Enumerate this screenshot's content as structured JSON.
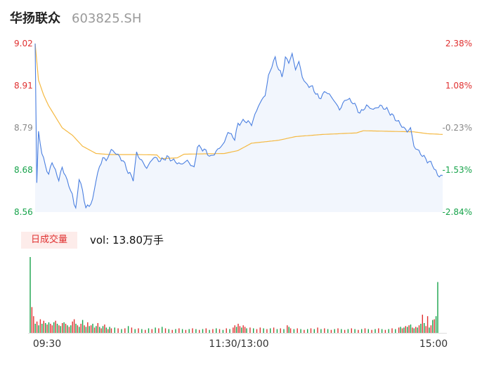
{
  "header": {
    "name": "华扬联众",
    "code": "603825.SH"
  },
  "colors": {
    "up": "#e03030",
    "down": "#16a34a",
    "flat": "#888888",
    "price_line": "#4a7fe0",
    "avg_line": "#f5b942",
    "fill": "#f2f6fd"
  },
  "volume": {
    "tag": "日成交量",
    "text": "vol: 13.80万手"
  },
  "chart_data": {
    "type": "line",
    "title": "",
    "price_ticks": [
      "9.02",
      "8.91",
      "8.79",
      "8.68",
      "8.56"
    ],
    "pct_ticks": [
      "2.38%",
      "1.08%",
      "-0.23%",
      "-1.53%",
      "-2.84%"
    ],
    "ylim": [
      8.56,
      9.02
    ],
    "prev_close": 8.81,
    "x_ticks": [
      "09:30",
      "11:30/13:00",
      "15:00"
    ],
    "price_keypoints": [
      [
        0,
        9.02
      ],
      [
        1,
        8.64
      ],
      [
        2,
        8.78
      ],
      [
        4,
        8.72
      ],
      [
        6,
        8.69
      ],
      [
        8,
        8.66
      ],
      [
        10,
        8.7
      ],
      [
        12,
        8.67
      ],
      [
        14,
        8.65
      ],
      [
        16,
        8.68
      ],
      [
        18,
        8.66
      ],
      [
        20,
        8.63
      ],
      [
        22,
        8.61
      ],
      [
        23,
        8.58
      ],
      [
        24,
        8.57
      ],
      [
        26,
        8.65
      ],
      [
        28,
        8.62
      ],
      [
        30,
        8.57
      ],
      [
        32,
        8.58
      ],
      [
        34,
        8.59
      ],
      [
        36,
        8.65
      ],
      [
        38,
        8.68
      ],
      [
        40,
        8.71
      ],
      [
        42,
        8.7
      ],
      [
        45,
        8.73
      ],
      [
        48,
        8.72
      ],
      [
        52,
        8.7
      ],
      [
        55,
        8.67
      ],
      [
        58,
        8.65
      ],
      [
        60,
        8.72
      ],
      [
        63,
        8.7
      ],
      [
        66,
        8.68
      ],
      [
        70,
        8.71
      ],
      [
        74,
        8.7
      ],
      [
        78,
        8.71
      ],
      [
        82,
        8.7
      ],
      [
        86,
        8.69
      ],
      [
        90,
        8.7
      ],
      [
        94,
        8.68
      ],
      [
        96,
        8.74
      ],
      [
        100,
        8.73
      ],
      [
        104,
        8.71
      ],
      [
        108,
        8.73
      ],
      [
        112,
        8.75
      ],
      [
        114,
        8.78
      ],
      [
        118,
        8.76
      ],
      [
        120,
        8.8
      ],
      [
        124,
        8.81
      ],
      [
        128,
        8.8
      ],
      [
        132,
        8.85
      ],
      [
        136,
        8.88
      ],
      [
        138,
        8.93
      ],
      [
        140,
        8.96
      ],
      [
        142,
        8.98
      ],
      [
        144,
        8.95
      ],
      [
        146,
        8.93
      ],
      [
        148,
        8.98
      ],
      [
        150,
        8.97
      ],
      [
        152,
        8.99
      ],
      [
        154,
        8.95
      ],
      [
        156,
        8.97
      ],
      [
        158,
        8.93
      ],
      [
        160,
        8.91
      ],
      [
        164,
        8.9
      ],
      [
        168,
        8.87
      ],
      [
        172,
        8.89
      ],
      [
        176,
        8.87
      ],
      [
        180,
        8.84
      ],
      [
        184,
        8.87
      ],
      [
        188,
        8.86
      ],
      [
        192,
        8.83
      ],
      [
        196,
        8.85
      ],
      [
        200,
        8.84
      ],
      [
        204,
        8.85
      ],
      [
        208,
        8.84
      ],
      [
        212,
        8.82
      ],
      [
        216,
        8.8
      ],
      [
        220,
        8.78
      ],
      [
        222,
        8.79
      ],
      [
        224,
        8.74
      ],
      [
        228,
        8.72
      ],
      [
        230,
        8.71
      ],
      [
        232,
        8.7
      ],
      [
        235,
        8.69
      ],
      [
        238,
        8.66
      ],
      [
        241,
        8.66
      ]
    ],
    "avg_keypoints": [
      [
        0,
        9.02
      ],
      [
        2,
        8.92
      ],
      [
        5,
        8.88
      ],
      [
        8,
        8.85
      ],
      [
        12,
        8.82
      ],
      [
        16,
        8.79
      ],
      [
        22,
        8.77
      ],
      [
        28,
        8.74
      ],
      [
        36,
        8.72
      ],
      [
        44,
        8.717
      ],
      [
        60,
        8.717
      ],
      [
        72,
        8.716
      ],
      [
        74,
        8.706
      ],
      [
        84,
        8.708
      ],
      [
        88,
        8.718
      ],
      [
        112,
        8.72
      ],
      [
        120,
        8.728
      ],
      [
        124,
        8.738
      ],
      [
        128,
        8.748
      ],
      [
        144,
        8.756
      ],
      [
        154,
        8.766
      ],
      [
        170,
        8.772
      ],
      [
        190,
        8.776
      ],
      [
        194,
        8.782
      ],
      [
        224,
        8.779
      ],
      [
        232,
        8.774
      ],
      [
        241,
        8.772
      ]
    ],
    "volume_bars": [
      [
        0,
        1.0,
        "d"
      ],
      [
        1,
        0.34,
        "u"
      ],
      [
        2,
        0.22,
        "u"
      ],
      [
        3,
        0.12,
        "d"
      ],
      [
        4,
        0.15,
        "u"
      ],
      [
        5,
        0.1,
        "d"
      ],
      [
        6,
        0.18,
        "u"
      ],
      [
        7,
        0.12,
        "d"
      ],
      [
        8,
        0.16,
        "u"
      ],
      [
        9,
        0.13,
        "d"
      ],
      [
        10,
        0.11,
        "u"
      ],
      [
        11,
        0.14,
        "d"
      ],
      [
        12,
        0.12,
        "u"
      ],
      [
        13,
        0.1,
        "u"
      ],
      [
        14,
        0.14,
        "d"
      ],
      [
        15,
        0.16,
        "u"
      ],
      [
        16,
        0.12,
        "d"
      ],
      [
        17,
        0.1,
        "u"
      ],
      [
        18,
        0.09,
        "d"
      ],
      [
        19,
        0.13,
        "u"
      ],
      [
        20,
        0.14,
        "d"
      ],
      [
        21,
        0.12,
        "u"
      ],
      [
        22,
        0.1,
        "d"
      ],
      [
        23,
        0.08,
        "u"
      ],
      [
        24,
        0.1,
        "d"
      ],
      [
        25,
        0.15,
        "u"
      ],
      [
        26,
        0.18,
        "u"
      ],
      [
        27,
        0.12,
        "d"
      ],
      [
        28,
        0.1,
        "u"
      ],
      [
        29,
        0.08,
        "d"
      ],
      [
        30,
        0.12,
        "u"
      ],
      [
        31,
        0.17,
        "d"
      ],
      [
        32,
        0.1,
        "u"
      ],
      [
        33,
        0.08,
        "d"
      ],
      [
        34,
        0.14,
        "u"
      ],
      [
        35,
        0.09,
        "d"
      ],
      [
        36,
        0.1,
        "u"
      ],
      [
        37,
        0.12,
        "d"
      ],
      [
        38,
        0.07,
        "u"
      ],
      [
        39,
        0.09,
        "d"
      ],
      [
        40,
        0.13,
        "u"
      ],
      [
        41,
        0.08,
        "d"
      ],
      [
        42,
        0.06,
        "u"
      ],
      [
        43,
        0.09,
        "d"
      ],
      [
        44,
        0.11,
        "u"
      ],
      [
        45,
        0.07,
        "d"
      ],
      [
        46,
        0.05,
        "u"
      ],
      [
        47,
        0.08,
        "d"
      ],
      [
        48,
        0.06,
        "u"
      ],
      [
        50,
        0.07,
        "d"
      ],
      [
        52,
        0.06,
        "u"
      ],
      [
        54,
        0.05,
        "d"
      ],
      [
        56,
        0.06,
        "u"
      ],
      [
        58,
        0.09,
        "d"
      ],
      [
        60,
        0.07,
        "u"
      ],
      [
        62,
        0.05,
        "d"
      ],
      [
        64,
        0.06,
        "u"
      ],
      [
        66,
        0.05,
        "d"
      ],
      [
        68,
        0.04,
        "u"
      ],
      [
        70,
        0.06,
        "d"
      ],
      [
        72,
        0.05,
        "u"
      ],
      [
        74,
        0.07,
        "d"
      ],
      [
        76,
        0.06,
        "u"
      ],
      [
        78,
        0.08,
        "d"
      ],
      [
        80,
        0.06,
        "u"
      ],
      [
        82,
        0.05,
        "d"
      ],
      [
        84,
        0.04,
        "u"
      ],
      [
        86,
        0.05,
        "d"
      ],
      [
        88,
        0.06,
        "u"
      ],
      [
        90,
        0.05,
        "d"
      ],
      [
        92,
        0.04,
        "u"
      ],
      [
        94,
        0.05,
        "d"
      ],
      [
        96,
        0.06,
        "u"
      ],
      [
        98,
        0.05,
        "d"
      ],
      [
        100,
        0.04,
        "u"
      ],
      [
        102,
        0.05,
        "d"
      ],
      [
        104,
        0.06,
        "u"
      ],
      [
        106,
        0.04,
        "d"
      ],
      [
        108,
        0.05,
        "u"
      ],
      [
        110,
        0.06,
        "d"
      ],
      [
        112,
        0.05,
        "u"
      ],
      [
        114,
        0.04,
        "d"
      ],
      [
        116,
        0.06,
        "u"
      ],
      [
        118,
        0.05,
        "d"
      ],
      [
        120,
        0.07,
        "u"
      ],
      [
        121,
        0.1,
        "u"
      ],
      [
        122,
        0.08,
        "d"
      ],
      [
        123,
        0.12,
        "u"
      ],
      [
        124,
        0.09,
        "u"
      ],
      [
        125,
        0.07,
        "d"
      ],
      [
        126,
        0.1,
        "u"
      ],
      [
        127,
        0.08,
        "u"
      ],
      [
        128,
        0.06,
        "d"
      ],
      [
        130,
        0.07,
        "u"
      ],
      [
        132,
        0.06,
        "d"
      ],
      [
        134,
        0.05,
        "u"
      ],
      [
        136,
        0.07,
        "u"
      ],
      [
        138,
        0.06,
        "d"
      ],
      [
        140,
        0.05,
        "u"
      ],
      [
        142,
        0.06,
        "d"
      ],
      [
        144,
        0.07,
        "u"
      ],
      [
        146,
        0.05,
        "d"
      ],
      [
        148,
        0.06,
        "u"
      ],
      [
        150,
        0.05,
        "d"
      ],
      [
        152,
        0.1,
        "u"
      ],
      [
        153,
        0.08,
        "d"
      ],
      [
        154,
        0.06,
        "u"
      ],
      [
        156,
        0.05,
        "d"
      ],
      [
        158,
        0.06,
        "u"
      ],
      [
        160,
        0.05,
        "d"
      ],
      [
        162,
        0.04,
        "u"
      ],
      [
        164,
        0.05,
        "d"
      ],
      [
        166,
        0.06,
        "u"
      ],
      [
        168,
        0.05,
        "d"
      ],
      [
        170,
        0.07,
        "u"
      ],
      [
        172,
        0.05,
        "d"
      ],
      [
        174,
        0.06,
        "u"
      ],
      [
        176,
        0.05,
        "d"
      ],
      [
        178,
        0.04,
        "u"
      ],
      [
        180,
        0.05,
        "d"
      ],
      [
        182,
        0.06,
        "u"
      ],
      [
        184,
        0.05,
        "d"
      ],
      [
        186,
        0.04,
        "u"
      ],
      [
        188,
        0.05,
        "d"
      ],
      [
        190,
        0.06,
        "u"
      ],
      [
        192,
        0.05,
        "d"
      ],
      [
        194,
        0.04,
        "u"
      ],
      [
        196,
        0.05,
        "d"
      ],
      [
        198,
        0.06,
        "u"
      ],
      [
        200,
        0.05,
        "d"
      ],
      [
        202,
        0.04,
        "u"
      ],
      [
        204,
        0.05,
        "d"
      ],
      [
        206,
        0.06,
        "u"
      ],
      [
        208,
        0.05,
        "d"
      ],
      [
        210,
        0.04,
        "u"
      ],
      [
        212,
        0.05,
        "d"
      ],
      [
        214,
        0.06,
        "u"
      ],
      [
        216,
        0.05,
        "d"
      ],
      [
        218,
        0.07,
        "u"
      ],
      [
        219,
        0.08,
        "d"
      ],
      [
        220,
        0.06,
        "u"
      ],
      [
        221,
        0.07,
        "d"
      ],
      [
        222,
        0.09,
        "u"
      ],
      [
        223,
        0.08,
        "d"
      ],
      [
        224,
        0.1,
        "u"
      ],
      [
        225,
        0.11,
        "d"
      ],
      [
        226,
        0.07,
        "u"
      ],
      [
        227,
        0.06,
        "d"
      ],
      [
        228,
        0.08,
        "u"
      ],
      [
        229,
        0.07,
        "d"
      ],
      [
        230,
        0.1,
        "u"
      ],
      [
        231,
        0.12,
        "d"
      ],
      [
        232,
        0.24,
        "u"
      ],
      [
        233,
        0.13,
        "d"
      ],
      [
        234,
        0.09,
        "u"
      ],
      [
        235,
        0.22,
        "u"
      ],
      [
        236,
        0.07,
        "d"
      ],
      [
        237,
        0.1,
        "u"
      ],
      [
        238,
        0.17,
        "d"
      ],
      [
        239,
        0.18,
        "u"
      ],
      [
        240,
        0.22,
        "d"
      ],
      [
        241,
        0.67,
        "d"
      ]
    ]
  }
}
